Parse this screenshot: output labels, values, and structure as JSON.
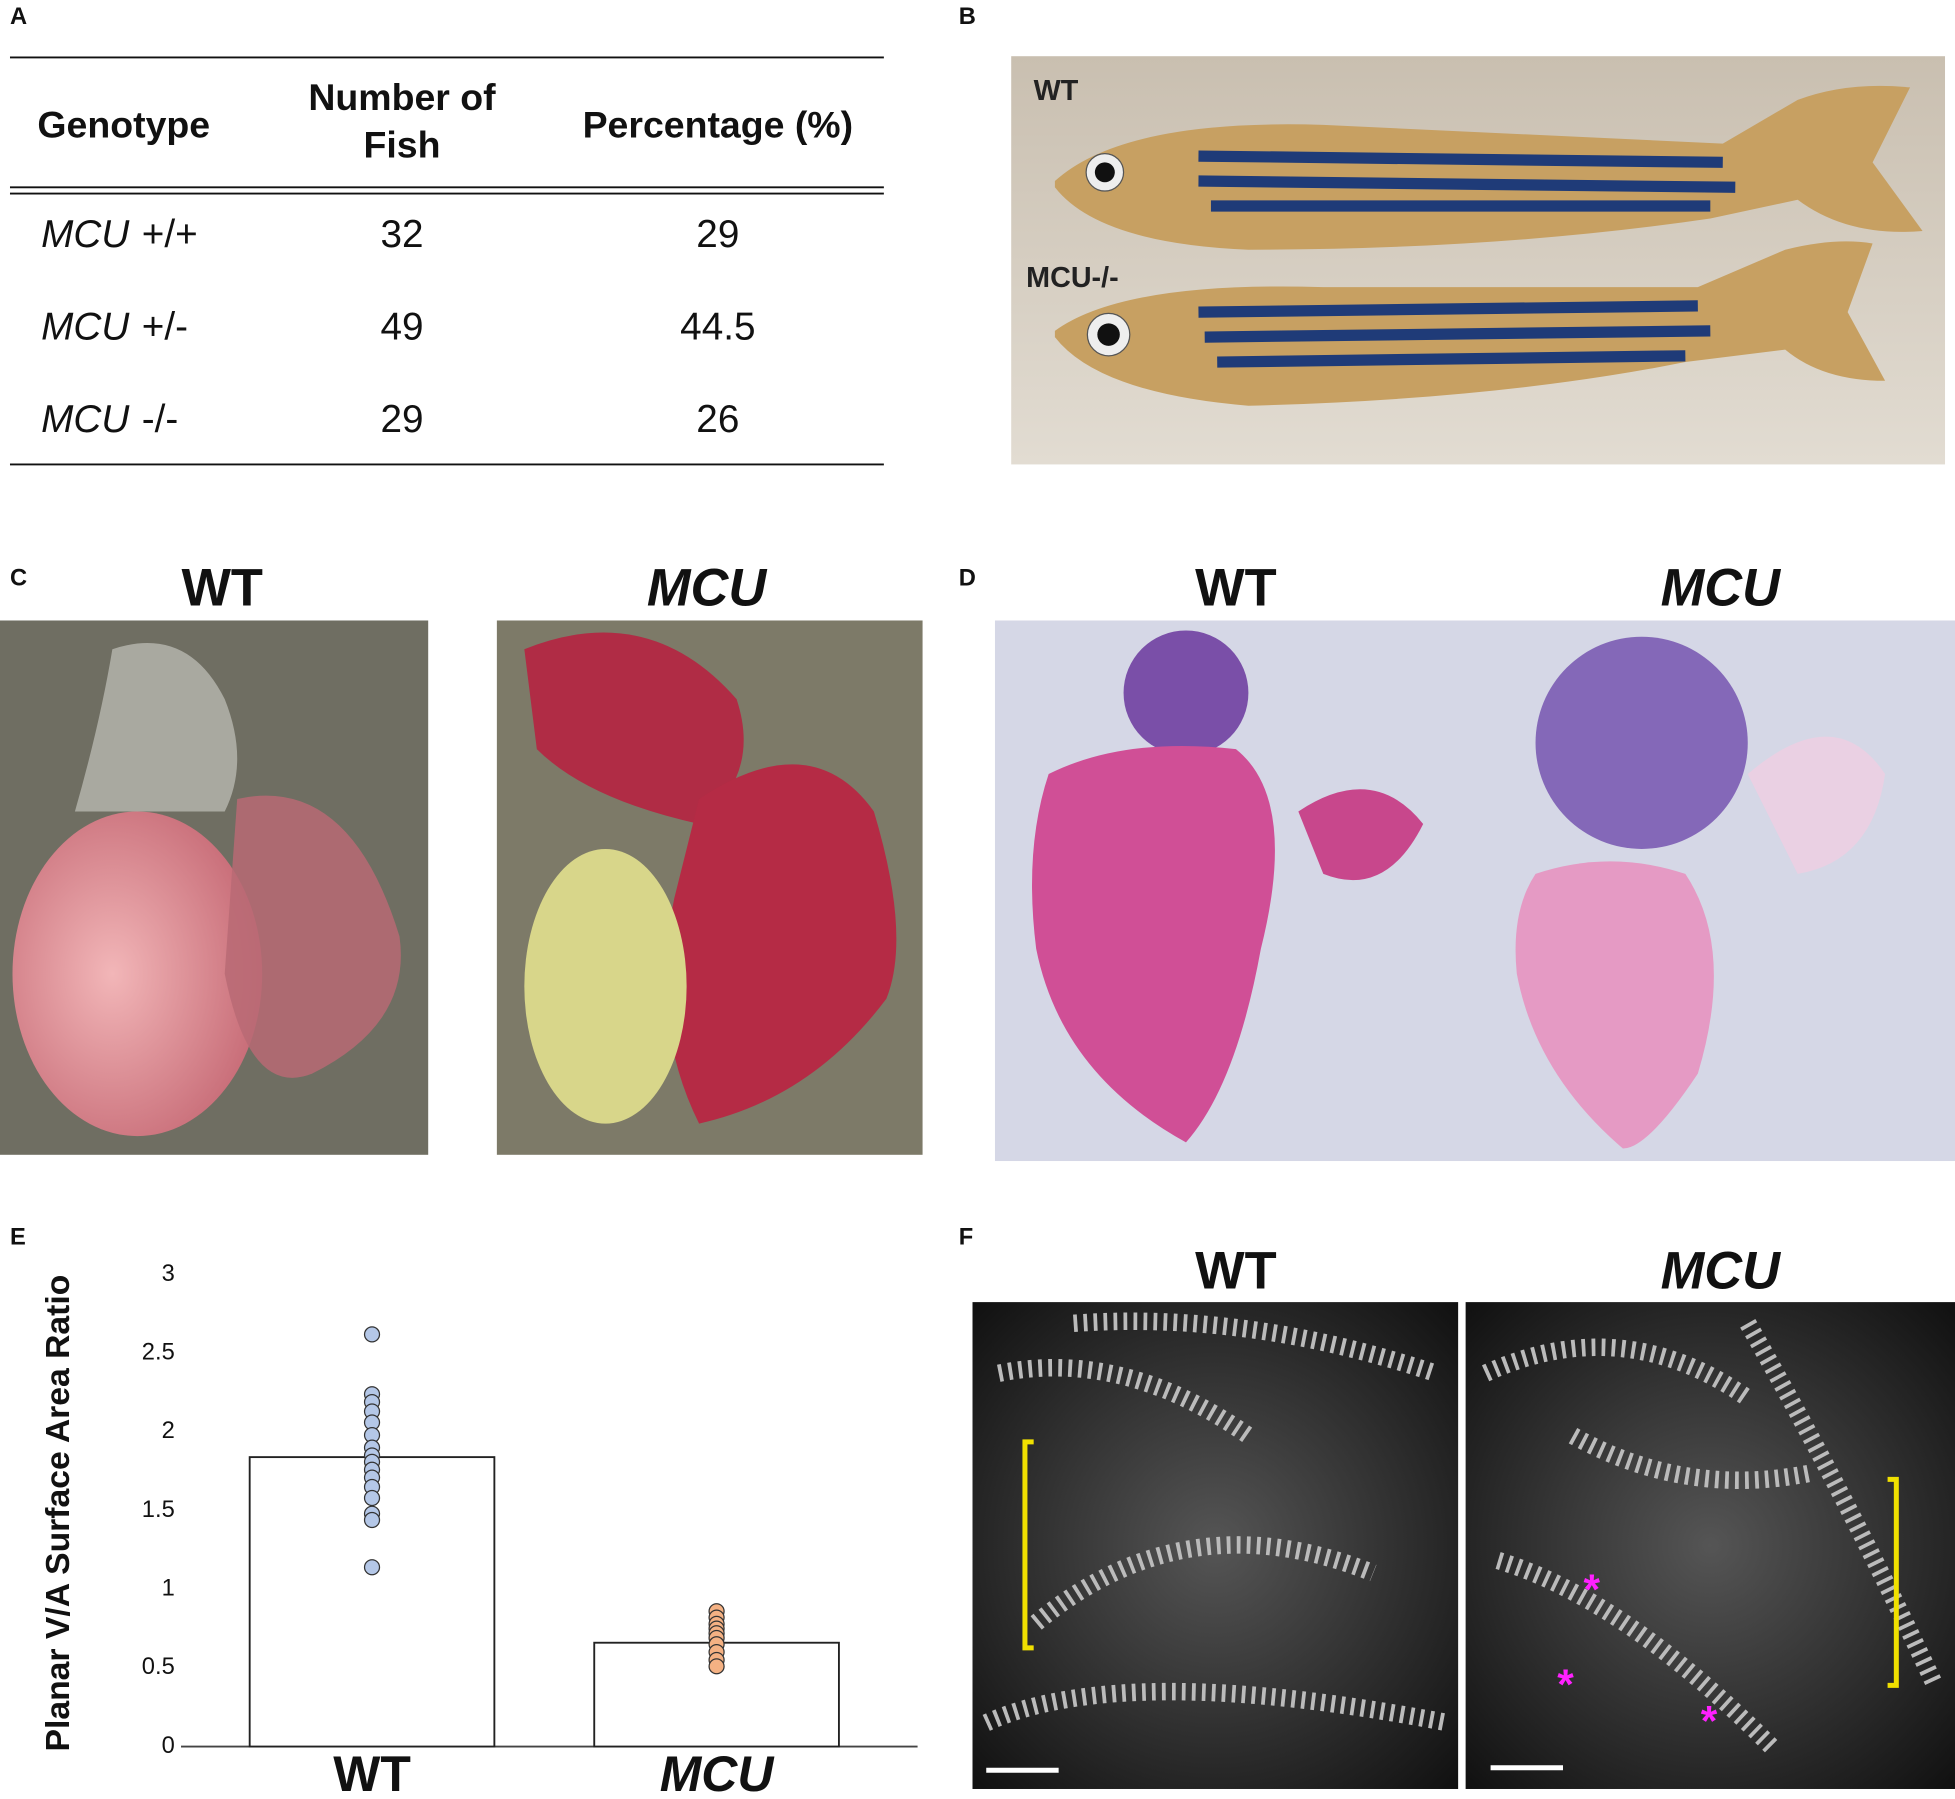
{
  "panel_labels": [
    "A",
    "B",
    "C",
    "D",
    "E",
    "F"
  ],
  "table": {
    "header": [
      "Genotype",
      "Number of Fish",
      "Percentage (%)"
    ],
    "rows": [
      [
        "MCU",
        "+/+",
        32,
        29
      ],
      [
        "MCU",
        "+/-",
        49,
        44.5
      ],
      [
        "MCU",
        "-/-",
        29,
        26
      ]
    ]
  },
  "panel_b": {
    "labels": [
      "WT",
      "MCU-/-"
    ]
  },
  "panel_c": {
    "labels": [
      "WT",
      "MCU"
    ]
  },
  "panel_d": {
    "labels": [
      "WT",
      "MCU"
    ]
  },
  "panel_f": {
    "labels": [
      "WT",
      "MCU"
    ],
    "asterisks": [
      "*",
      "*",
      "*"
    ]
  },
  "chart_data": {
    "type": "bar",
    "y_label": "Planar V/A Surface Area Ratio",
    "categories": [
      "WT",
      "MCU"
    ],
    "values": [
      1.84,
      0.66
    ],
    "color": "#ffffff",
    "points": [
      {
        "color": "#b4c7e7",
        "values": [
          2.62,
          2.24,
          2.19,
          2.13,
          2.06,
          1.98,
          1.9,
          1.85,
          1.81,
          1.76,
          1.71,
          1.65,
          1.58,
          1.48,
          1.44,
          1.14
        ]
      },
      {
        "color": "#f4b183",
        "values": [
          0.86,
          0.82,
          0.78,
          0.75,
          0.72,
          0.69,
          0.65,
          0.6,
          0.55,
          0.51
        ]
      }
    ],
    "ylim": [
      0,
      3
    ],
    "yticks": [
      0,
      0.5,
      1,
      1.5,
      2,
      2.5,
      3
    ]
  }
}
